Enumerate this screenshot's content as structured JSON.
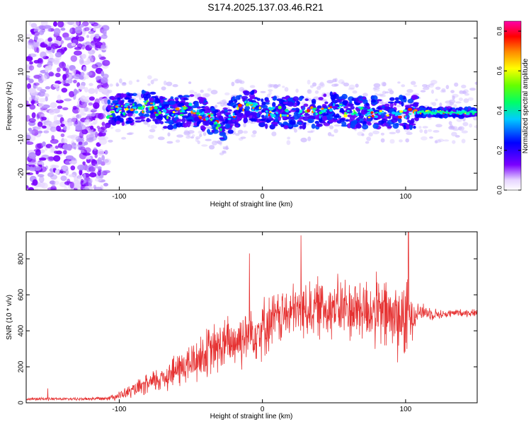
{
  "page_title": "S174.2025.137.03.46.R21",
  "chart_data": [
    {
      "type": "heatmap",
      "title": "",
      "xlabel": "Height of straight line (km)",
      "ylabel": "Frequency (Hz)",
      "xlim": [
        -165,
        150
      ],
      "ylim": [
        -25,
        25
      ],
      "xticks": [
        -100,
        0,
        100
      ],
      "yticks": [
        -20,
        -10,
        0,
        10,
        20
      ],
      "colorbar": {
        "label": "Normalized spectral amplitude",
        "range": [
          0,
          0.85
        ],
        "ticks": [
          0.0,
          0.2,
          0.4,
          0.6,
          0.8
        ],
        "colormap": "rainbow (white → purple → blue → cyan → green → yellow → red → magenta)"
      },
      "signal_track": {
        "description": "Frequency centroid of dominant signal vs height",
        "x": [
          -108,
          -100,
          -90,
          -80,
          -70,
          -60,
          -50,
          -40,
          -35,
          -30,
          -25,
          -20,
          -15,
          -10,
          -5,
          0,
          10,
          20,
          30,
          40,
          50,
          55,
          60,
          70,
          80,
          90,
          100,
          105,
          110,
          120,
          130,
          140,
          150
        ],
        "frequency": [
          -2,
          -1,
          -1,
          0,
          -2,
          -2,
          -1,
          -3,
          -4,
          -6,
          -5,
          -2,
          -1,
          0,
          0,
          -2,
          -2,
          -2,
          -2,
          -2,
          0,
          -1,
          -2,
          -2,
          -2,
          -2,
          -2,
          -2,
          -2,
          -2,
          -2,
          -2,
          -2
        ]
      },
      "noise_region": {
        "x_from": -165,
        "x_to": -108,
        "frequency_span": [
          -25,
          25
        ]
      }
    },
    {
      "type": "line",
      "title": "",
      "xlabel": "Height of straight line (km)",
      "ylabel": "SNR (10 * v/v)",
      "xlim": [
        -165,
        150
      ],
      "ylim": [
        0,
        950
      ],
      "xticks": [
        -100,
        0,
        100
      ],
      "yticks": [
        0,
        200,
        400,
        600,
        800
      ],
      "series": [
        {
          "color": "#e63232",
          "envelope": {
            "x": [
              -165,
              -150,
              -130,
              -110,
              -100,
              -90,
              -80,
              -70,
              -60,
              -50,
              -40,
              -30,
              -20,
              -10,
              0,
              10,
              20,
              30,
              40,
              50,
              60,
              70,
              80,
              90,
              100,
              108,
              115,
              125,
              135,
              145,
              150
            ],
            "mean": [
              20,
              22,
              20,
              25,
              40,
              70,
              100,
              140,
              180,
              220,
              270,
              310,
              340,
              380,
              420,
              470,
              500,
              520,
              530,
              530,
              520,
              520,
              500,
              480,
              460,
              510,
              500,
              490,
              500,
              500,
              500
            ],
            "spread": [
              8,
              8,
              8,
              10,
              25,
              40,
              60,
              80,
              100,
              120,
              140,
              150,
              160,
              170,
              170,
              150,
              150,
              160,
              170,
              170,
              180,
              190,
              200,
              220,
              240,
              60,
              40,
              25,
              20,
              20,
              20
            ]
          },
          "notable_spikes": [
            {
              "x": -150,
              "y": 80
            },
            {
              "x": -9,
              "y": 830
            },
            {
              "x": 27,
              "y": 930
            },
            {
              "x": 102,
              "y": 960
            }
          ]
        }
      ]
    }
  ]
}
